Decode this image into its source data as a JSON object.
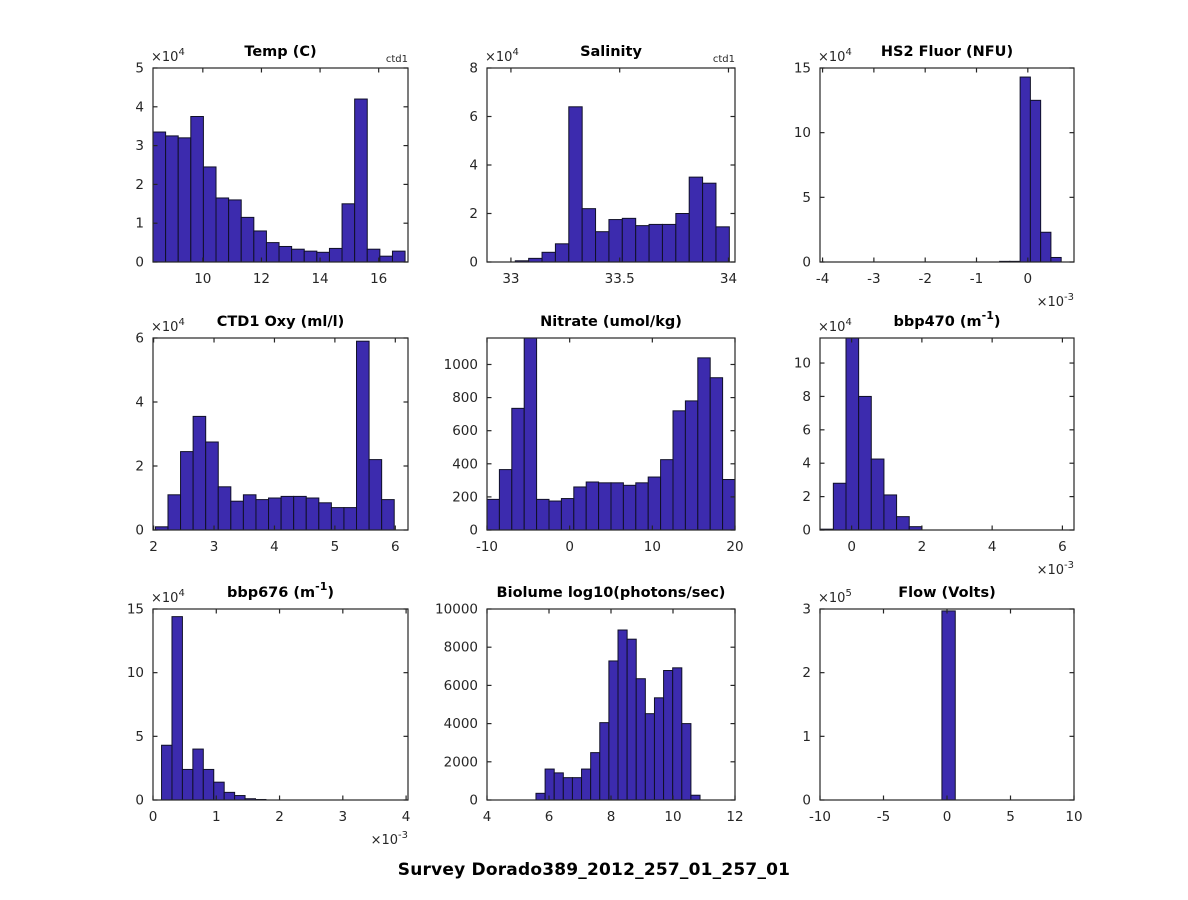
{
  "figure": {
    "title": "Survey Dorado389_2012_257_01_257_01",
    "background": "#ffffff"
  },
  "colors": {
    "bar_fill": "#3C2BAE",
    "bar_edge": "#101028",
    "axis": "#262626",
    "title": "#000000"
  },
  "chart_data": [
    {
      "id": "temp",
      "type": "bar",
      "title": "Temp (C)",
      "title_sup": null,
      "title_tail": null,
      "corner_label": "ctd1",
      "grid": {
        "row": 0,
        "col": 0
      },
      "xlim": [
        8.3,
        17.0
      ],
      "ylim": [
        0,
        50000
      ],
      "xticks": [
        {
          "v": 10,
          "l": "10"
        },
        {
          "v": 12,
          "l": "12"
        },
        {
          "v": 14,
          "l": "14"
        },
        {
          "v": 16,
          "l": "16"
        }
      ],
      "yticks": [
        {
          "v": 0,
          "l": "0"
        },
        {
          "v": 10000,
          "l": "1"
        },
        {
          "v": 20000,
          "l": "2"
        },
        {
          "v": 30000,
          "l": "3"
        },
        {
          "v": 40000,
          "l": "4"
        },
        {
          "v": 50000,
          "l": "5"
        }
      ],
      "y_exponent": "4",
      "x_exponent": null,
      "bin_start": 8.3,
      "bin_width": 0.43,
      "counts": [
        33500,
        32500,
        32000,
        37500,
        24500,
        16500,
        16000,
        11500,
        8000,
        5000,
        4000,
        3300,
        2800,
        2500,
        3500,
        15000,
        42000,
        3300,
        1500,
        2800
      ]
    },
    {
      "id": "salinity",
      "type": "bar",
      "title": "Salinity",
      "title_sup": null,
      "title_tail": null,
      "corner_label": "ctd1",
      "grid": {
        "row": 0,
        "col": 1
      },
      "xlim": [
        32.89,
        34.03
      ],
      "ylim": [
        0,
        80000
      ],
      "xticks": [
        {
          "v": 33,
          "l": "33"
        },
        {
          "v": 33.5,
          "l": "33.5"
        },
        {
          "v": 34,
          "l": "34"
        }
      ],
      "yticks": [
        {
          "v": 0,
          "l": "0"
        },
        {
          "v": 20000,
          "l": "2"
        },
        {
          "v": 40000,
          "l": "4"
        },
        {
          "v": 60000,
          "l": "6"
        },
        {
          "v": 80000,
          "l": "8"
        }
      ],
      "y_exponent": "4",
      "x_exponent": null,
      "bin_start": 33.02,
      "bin_width": 0.0615,
      "counts": [
        500,
        1500,
        4000,
        7500,
        64000,
        22000,
        12500,
        17500,
        18000,
        15000,
        15500,
        15500,
        20000,
        35000,
        32500,
        14500
      ]
    },
    {
      "id": "hs2",
      "type": "bar",
      "title": "HS2 Fluor (NFU)",
      "title_sup": null,
      "title_tail": null,
      "corner_label": null,
      "grid": {
        "row": 0,
        "col": 2
      },
      "xlim": [
        -4.05,
        0.9
      ],
      "ylim": [
        0,
        150000
      ],
      "xticks": [
        {
          "v": -4,
          "l": "-4"
        },
        {
          "v": -3,
          "l": "-3"
        },
        {
          "v": -2,
          "l": "-2"
        },
        {
          "v": -1,
          "l": "-1"
        },
        {
          "v": 0,
          "l": "0"
        }
      ],
      "yticks": [
        {
          "v": 0,
          "l": "0"
        },
        {
          "v": 50000,
          "l": "5"
        },
        {
          "v": 100000,
          "l": "10"
        },
        {
          "v": 150000,
          "l": "15"
        }
      ],
      "y_exponent": "4",
      "x_exponent": "-3",
      "bin_start": -0.55,
      "bin_width": 0.2,
      "counts": [
        500,
        500,
        143000,
        125000,
        23000,
        3500
      ]
    },
    {
      "id": "oxy",
      "type": "bar",
      "title": "CTD1 Oxy (ml/l)",
      "title_sup": null,
      "title_tail": null,
      "corner_label": null,
      "grid": {
        "row": 1,
        "col": 0
      },
      "xlim": [
        1.99,
        6.21
      ],
      "ylim": [
        0,
        60000
      ],
      "xticks": [
        {
          "v": 2,
          "l": "2"
        },
        {
          "v": 3,
          "l": "3"
        },
        {
          "v": 4,
          "l": "4"
        },
        {
          "v": 5,
          "l": "5"
        },
        {
          "v": 6,
          "l": "6"
        }
      ],
      "yticks": [
        {
          "v": 0,
          "l": "0"
        },
        {
          "v": 20000,
          "l": "2"
        },
        {
          "v": 40000,
          "l": "4"
        },
        {
          "v": 60000,
          "l": "6"
        }
      ],
      "y_exponent": "4",
      "x_exponent": null,
      "bin_start": 2.03,
      "bin_width": 0.208,
      "counts": [
        1000,
        11000,
        24500,
        35500,
        27500,
        13500,
        9000,
        11000,
        9500,
        10000,
        10500,
        10500,
        10000,
        8500,
        7000,
        7000,
        59000,
        22000,
        9500
      ]
    },
    {
      "id": "nitrate",
      "type": "bar",
      "title": "Nitrate (umol/kg)",
      "title_sup": null,
      "title_tail": null,
      "corner_label": null,
      "grid": {
        "row": 1,
        "col": 1
      },
      "xlim": [
        -10,
        20
      ],
      "ylim": [
        0,
        1160
      ],
      "xticks": [
        {
          "v": -10,
          "l": "-10"
        },
        {
          "v": 0,
          "l": "0"
        },
        {
          "v": 10,
          "l": "10"
        },
        {
          "v": 20,
          "l": "20"
        }
      ],
      "yticks": [
        {
          "v": 0,
          "l": "0"
        },
        {
          "v": 200,
          "l": "200"
        },
        {
          "v": 400,
          "l": "400"
        },
        {
          "v": 600,
          "l": "600"
        },
        {
          "v": 800,
          "l": "800"
        },
        {
          "v": 1000,
          "l": "1000"
        }
      ],
      "y_exponent": null,
      "x_exponent": null,
      "bin_start": -10,
      "bin_width": 1.5,
      "counts": [
        185,
        365,
        735,
        1160,
        185,
        175,
        190,
        260,
        290,
        285,
        285,
        270,
        285,
        320,
        425,
        720,
        780,
        1040,
        920,
        305
      ]
    },
    {
      "id": "bbp470",
      "type": "bar",
      "title": "bbp470 (m",
      "title_sup": "-1",
      "title_tail": ")",
      "corner_label": null,
      "grid": {
        "row": 1,
        "col": 2
      },
      "xlim": [
        -0.9,
        6.33
      ],
      "ylim": [
        0,
        115000
      ],
      "xticks": [
        {
          "v": 0,
          "l": "0"
        },
        {
          "v": 2,
          "l": "2"
        },
        {
          "v": 4,
          "l": "4"
        },
        {
          "v": 6,
          "l": "6"
        }
      ],
      "yticks": [
        {
          "v": 0,
          "l": "0"
        },
        {
          "v": 20000,
          "l": "2"
        },
        {
          "v": 40000,
          "l": "4"
        },
        {
          "v": 60000,
          "l": "6"
        },
        {
          "v": 80000,
          "l": "8"
        },
        {
          "v": 100000,
          "l": "10"
        }
      ],
      "y_exponent": "4",
      "x_exponent": "-3",
      "bin_start": -0.88,
      "bin_width": 0.36,
      "counts": [
        500,
        28000,
        115000,
        80000,
        42500,
        21000,
        8000,
        2000
      ]
    },
    {
      "id": "bbp676",
      "type": "bar",
      "title": "bbp676 (m",
      "title_sup": "-1",
      "title_tail": ")",
      "corner_label": null,
      "grid": {
        "row": 2,
        "col": 0
      },
      "xlim": [
        0,
        4.03
      ],
      "ylim": [
        0,
        150000
      ],
      "xticks": [
        {
          "v": 0,
          "l": "0"
        },
        {
          "v": 1,
          "l": "1"
        },
        {
          "v": 2,
          "l": "2"
        },
        {
          "v": 3,
          "l": "3"
        },
        {
          "v": 4,
          "l": "4"
        }
      ],
      "yticks": [
        {
          "v": 0,
          "l": "0"
        },
        {
          "v": 50000,
          "l": "5"
        },
        {
          "v": 100000,
          "l": "10"
        },
        {
          "v": 150000,
          "l": "15"
        }
      ],
      "y_exponent": "4",
      "x_exponent": "-3",
      "bin_start": 0.135,
      "bin_width": 0.165,
      "counts": [
        43000,
        144000,
        24000,
        40000,
        24000,
        14000,
        6000,
        3500,
        1000,
        400
      ]
    },
    {
      "id": "biolume",
      "type": "bar",
      "title": "Biolume log10(photons/sec)",
      "title_sup": null,
      "title_tail": null,
      "corner_label": null,
      "grid": {
        "row": 2,
        "col": 1
      },
      "xlim": [
        4,
        12
      ],
      "ylim": [
        0,
        10000
      ],
      "xticks": [
        {
          "v": 4,
          "l": "4"
        },
        {
          "v": 6,
          "l": "6"
        },
        {
          "v": 8,
          "l": "8"
        },
        {
          "v": 10,
          "l": "10"
        },
        {
          "v": 12,
          "l": "12"
        }
      ],
      "yticks": [
        {
          "v": 0,
          "l": "0"
        },
        {
          "v": 2000,
          "l": "2000"
        },
        {
          "v": 4000,
          "l": "4000"
        },
        {
          "v": 6000,
          "l": "6000"
        },
        {
          "v": 8000,
          "l": "8000"
        },
        {
          "v": 10000,
          "l": "10000"
        }
      ],
      "y_exponent": null,
      "x_exponent": null,
      "bin_start": 5.58,
      "bin_width": 0.294,
      "counts": [
        350,
        1620,
        1420,
        1170,
        1170,
        1620,
        2480,
        4050,
        7280,
        8900,
        8420,
        6350,
        4520,
        5350,
        6780,
        6920,
        4000,
        250
      ]
    },
    {
      "id": "flow",
      "type": "bar",
      "title": "Flow (Volts)",
      "title_sup": null,
      "title_tail": null,
      "corner_label": null,
      "grid": {
        "row": 2,
        "col": 2
      },
      "xlim": [
        -10,
        10
      ],
      "ylim": [
        0,
        300000
      ],
      "xticks": [
        {
          "v": -10,
          "l": "-10"
        },
        {
          "v": -5,
          "l": "-5"
        },
        {
          "v": 0,
          "l": "0"
        },
        {
          "v": 5,
          "l": "5"
        },
        {
          "v": 10,
          "l": "10"
        }
      ],
      "yticks": [
        {
          "v": 0,
          "l": "0"
        },
        {
          "v": 100000,
          "l": "1"
        },
        {
          "v": 200000,
          "l": "2"
        },
        {
          "v": 300000,
          "l": "3"
        }
      ],
      "y_exponent": "5",
      "x_exponent": null,
      "bin_start": -0.4,
      "bin_width": 1.05,
      "counts": [
        297000
      ]
    }
  ]
}
